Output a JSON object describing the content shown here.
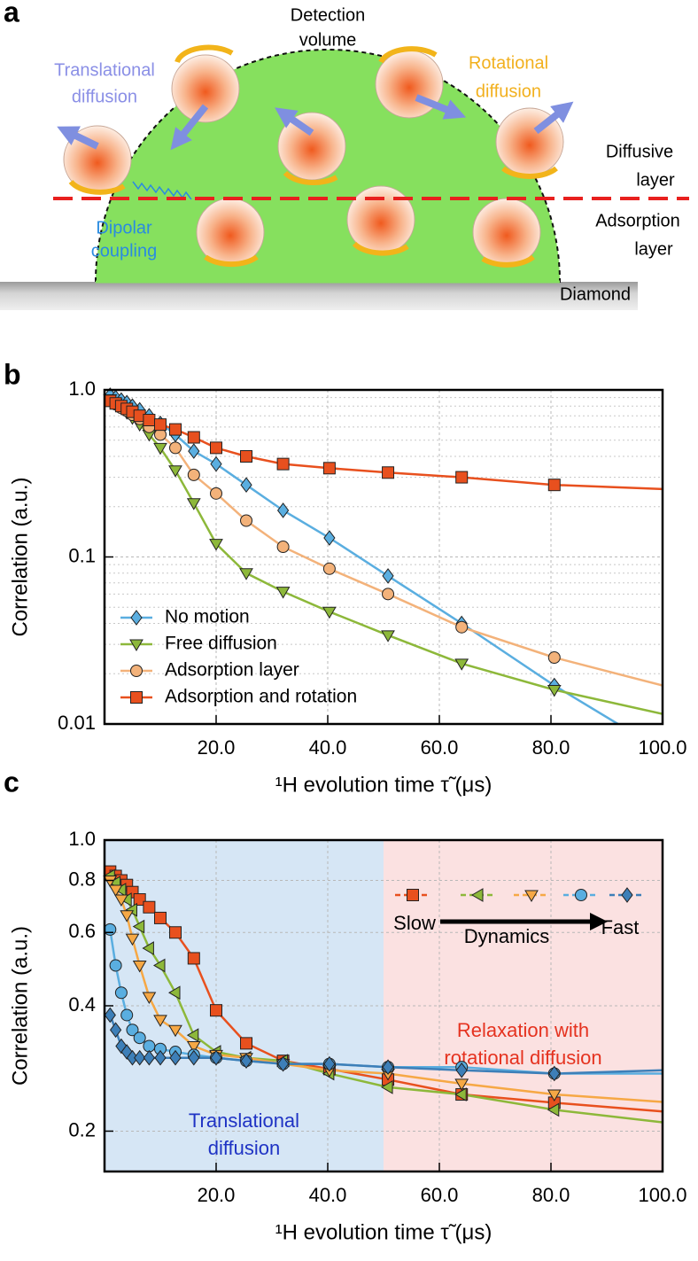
{
  "diagram": {
    "panel_label": "a",
    "detection": [
      "Detection",
      "volume"
    ],
    "translational": [
      "Translational",
      "diffusion"
    ],
    "rotational": [
      "Rotational",
      "diffusion"
    ],
    "diffusive": [
      "Diffusive",
      "layer"
    ],
    "dipolar": [
      "Dipolar",
      "coupling"
    ],
    "adsorption": [
      "Adsorption",
      "layer"
    ],
    "substrate": "Diamond"
  },
  "chart_data": [
    {
      "type": "line",
      "panel_label": "b",
      "ylabel": "Correlation (a.u.)",
      "xlabel": "¹H evolution time τ̃ (μs)",
      "xlim": [
        0,
        100
      ],
      "ylim": [
        0.01,
        1
      ],
      "yscale": "log",
      "grid": true,
      "legend": "lower left",
      "xticks": [
        {
          "value": 20,
          "label": "20.0"
        },
        {
          "value": 40,
          "label": "40.0"
        },
        {
          "value": 60,
          "label": "60.0"
        },
        {
          "value": 80,
          "label": "80.0"
        },
        {
          "value": 100,
          "label": "100.0"
        }
      ],
      "yticks": [
        0.01,
        0.1,
        {
          "value": 1,
          "label": "1.0"
        }
      ],
      "yminor": [
        0.02,
        0.03,
        0.04,
        0.05,
        0.06,
        0.07,
        0.08,
        0.09,
        0.2,
        0.3,
        0.4,
        0.5,
        0.6,
        0.7,
        0.8,
        0.9
      ],
      "x": [
        1,
        2,
        3,
        4,
        5,
        6.3,
        8,
        10,
        12.7,
        16,
        20,
        25.4,
        32,
        40.3,
        50.8,
        64,
        80.6
      ],
      "series": [
        {
          "name": "No motion",
          "color": "#5aaee0",
          "marker": "diamond",
          "values": [
            0.93,
            0.9,
            0.87,
            0.84,
            0.8,
            0.76,
            0.7,
            0.63,
            0.54,
            0.43,
            0.36,
            0.27,
            0.19,
            0.13,
            0.077,
            0.04,
            0.017
          ],
          "end_x": 92,
          "end_value": 0.01
        },
        {
          "name": "Free diffusion",
          "color": "#8db83a",
          "marker": "triangle-down",
          "values": [
            0.88,
            0.83,
            0.78,
            0.73,
            0.68,
            0.62,
            0.54,
            0.45,
            0.33,
            0.21,
            0.12,
            0.08,
            0.062,
            0.047,
            0.034,
            0.023,
            0.016
          ],
          "end_x": 100,
          "end_value": 0.0115
        },
        {
          "name": "Adsorption layer",
          "color": "#f3b27a",
          "marker": "circle",
          "values": [
            0.86,
            0.82,
            0.78,
            0.75,
            0.71,
            0.67,
            0.6,
            0.54,
            0.45,
            0.31,
            0.24,
            0.165,
            0.115,
            0.085,
            0.06,
            0.038,
            0.025
          ],
          "end_x": 100,
          "end_value": 0.017
        },
        {
          "name": "Adsorption and rotation",
          "color": "#e8501e",
          "marker": "square",
          "values": [
            0.86,
            0.83,
            0.8,
            0.77,
            0.74,
            0.7,
            0.66,
            0.62,
            0.58,
            0.52,
            0.45,
            0.4,
            0.36,
            0.34,
            0.32,
            0.3,
            0.27
          ],
          "end_x": 100,
          "end_value": 0.255
        }
      ]
    },
    {
      "type": "line",
      "panel_label": "c",
      "ylabel": "Correlation (a.u.)",
      "xlabel": "¹H evolution time τ̃ (μs)",
      "xlim": [
        0,
        100
      ],
      "ylim": [
        0.16,
        1
      ],
      "yscale": "log",
      "grid": true,
      "legend": "upper right",
      "legend_labels": {
        "slow": "Slow",
        "dynamics": "Dynamics",
        "fast": "Fast"
      },
      "xticks": [
        {
          "value": 20,
          "label": "20.0"
        },
        {
          "value": 40,
          "label": "40.0"
        },
        {
          "value": 60,
          "label": "60.0"
        },
        {
          "value": 80,
          "label": "80.0"
        },
        {
          "value": 100,
          "label": "100.0"
        }
      ],
      "yticks": [
        0.2,
        0.4,
        0.6,
        0.8,
        {
          "value": 1,
          "label": "1.0"
        }
      ],
      "regions": [
        {
          "from": 0,
          "to": 50,
          "color": "#d6e6f5",
          "label_color": "#1f33c4",
          "label": [
            "Translational",
            "diffusion"
          ]
        },
        {
          "from": 50,
          "to": 100,
          "color": "#fbe1e1",
          "label_color": "#e5321f",
          "label": [
            "Relaxation with",
            "rotational diffusion"
          ]
        }
      ],
      "x": [
        1,
        2,
        3,
        4,
        5,
        6.3,
        8,
        10,
        12.7,
        16,
        20,
        25.4,
        32,
        40.3,
        50.8,
        64,
        80.6
      ],
      "series": [
        {
          "color": "#e8501e",
          "marker": "square",
          "values": [
            0.84,
            0.82,
            0.8,
            0.78,
            0.75,
            0.72,
            0.69,
            0.65,
            0.6,
            0.52,
            0.39,
            0.325,
            0.295,
            0.282,
            0.266,
            0.245,
            0.234
          ],
          "end_x": 100,
          "end_value": 0.223
        },
        {
          "color": "#8db83a",
          "marker": "triangle-left",
          "values": [
            0.82,
            0.79,
            0.76,
            0.72,
            0.68,
            0.62,
            0.55,
            0.5,
            0.43,
            0.34,
            0.31,
            0.3,
            0.295,
            0.275,
            0.255,
            0.245,
            0.225
          ],
          "end_x": 100,
          "end_value": 0.21
        },
        {
          "color": "#f6a845",
          "marker": "triangle-down",
          "values": [
            0.8,
            0.76,
            0.72,
            0.66,
            0.58,
            0.5,
            0.42,
            0.37,
            0.35,
            0.32,
            0.305,
            0.3,
            0.29,
            0.28,
            0.275,
            0.26,
            0.245
          ],
          "end_x": 100,
          "end_value": 0.235
        },
        {
          "color": "#5aaee0",
          "marker": "circle",
          "values": [
            0.61,
            0.5,
            0.43,
            0.38,
            0.35,
            0.335,
            0.32,
            0.315,
            0.31,
            0.305,
            0.3,
            0.295,
            0.29,
            0.29,
            0.285,
            0.285,
            0.275
          ],
          "end_x": 100,
          "end_value": 0.275
        },
        {
          "color": "#3d7fb8",
          "marker": "diamond",
          "values": [
            0.38,
            0.35,
            0.32,
            0.31,
            0.3,
            0.3,
            0.3,
            0.3,
            0.3,
            0.3,
            0.3,
            0.295,
            0.29,
            0.29,
            0.285,
            0.28,
            0.275
          ],
          "end_x": 100,
          "end_value": 0.28
        }
      ]
    }
  ]
}
